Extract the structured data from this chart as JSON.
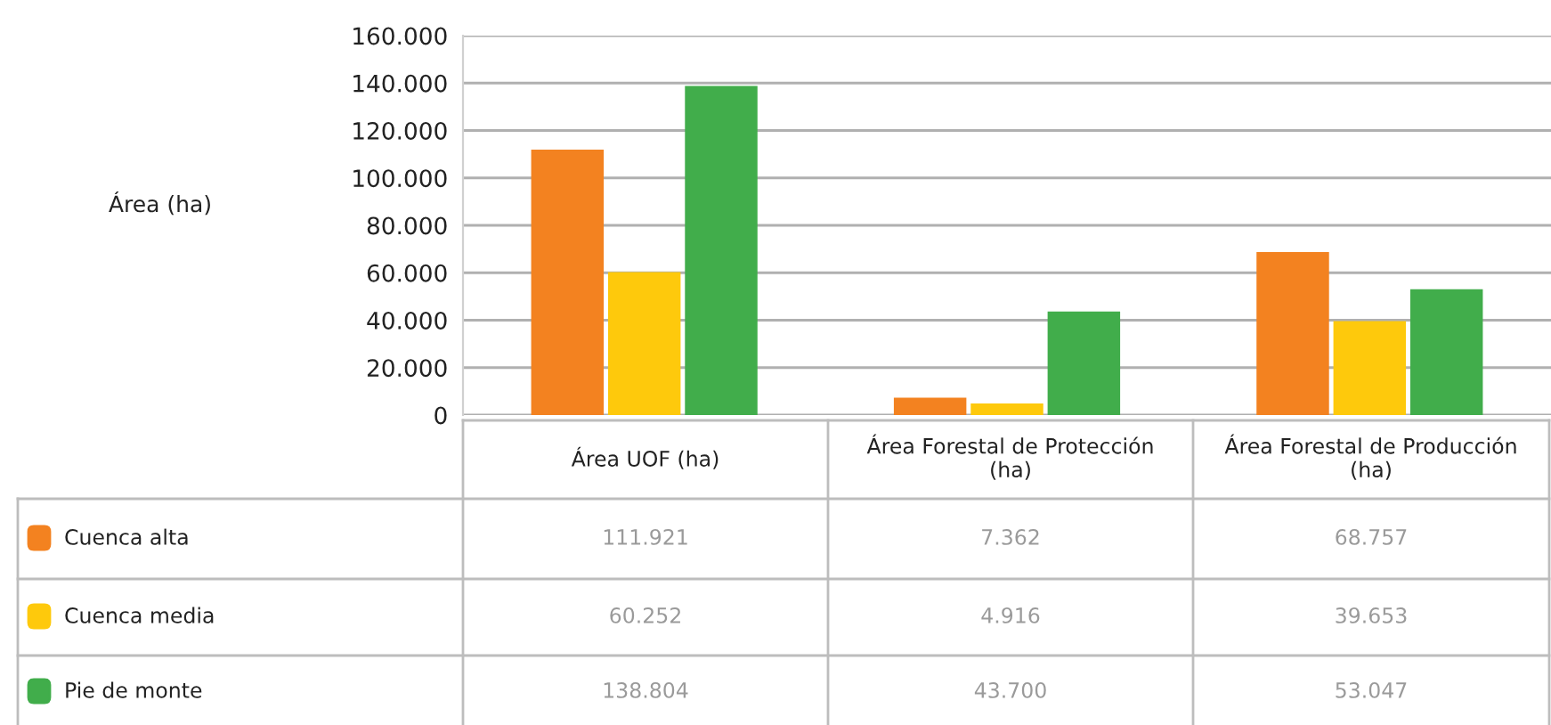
{
  "chart_data": {
    "type": "bar",
    "annotations": [
      "Área (ha)"
    ],
    "categories": [
      "Área UOF (ha)",
      "Área Forestal de Protección\n(ha)",
      "Área Forestal de Producción\n(ha)"
    ],
    "series": [
      {
        "name": "Cuenca alta",
        "color": "#f38220",
        "values": [
          111921,
          7362,
          68757
        ],
        "value_labels": [
          "111.921",
          "7.362",
          "68.757"
        ]
      },
      {
        "name": "Cuenca media",
        "color": "#fec90c",
        "values": [
          60252,
          4916,
          39653
        ],
        "value_labels": [
          "60.252",
          "4.916",
          "39.653"
        ]
      },
      {
        "name": "Pie de monte",
        "color": "#41ad4b",
        "values": [
          138804,
          43700,
          53047
        ],
        "value_labels": [
          "138.804",
          "43.700",
          "53.047"
        ]
      }
    ],
    "ylim": [
      0,
      160000
    ],
    "yticks": [
      0,
      {
        "value": 20000,
        "label": "20.000"
      },
      {
        "value": 40000,
        "label": "40.000"
      },
      {
        "value": 60000,
        "label": "60.000"
      },
      {
        "value": 80000,
        "label": "80.000"
      },
      {
        "value": 100000,
        "label": "100.000"
      },
      {
        "value": 120000,
        "label": "120.000"
      },
      {
        "value": 140000,
        "label": "140.000"
      },
      {
        "value": 160000,
        "label": "160.000"
      }
    ],
    "grid": "y",
    "legend": "bottom left"
  }
}
